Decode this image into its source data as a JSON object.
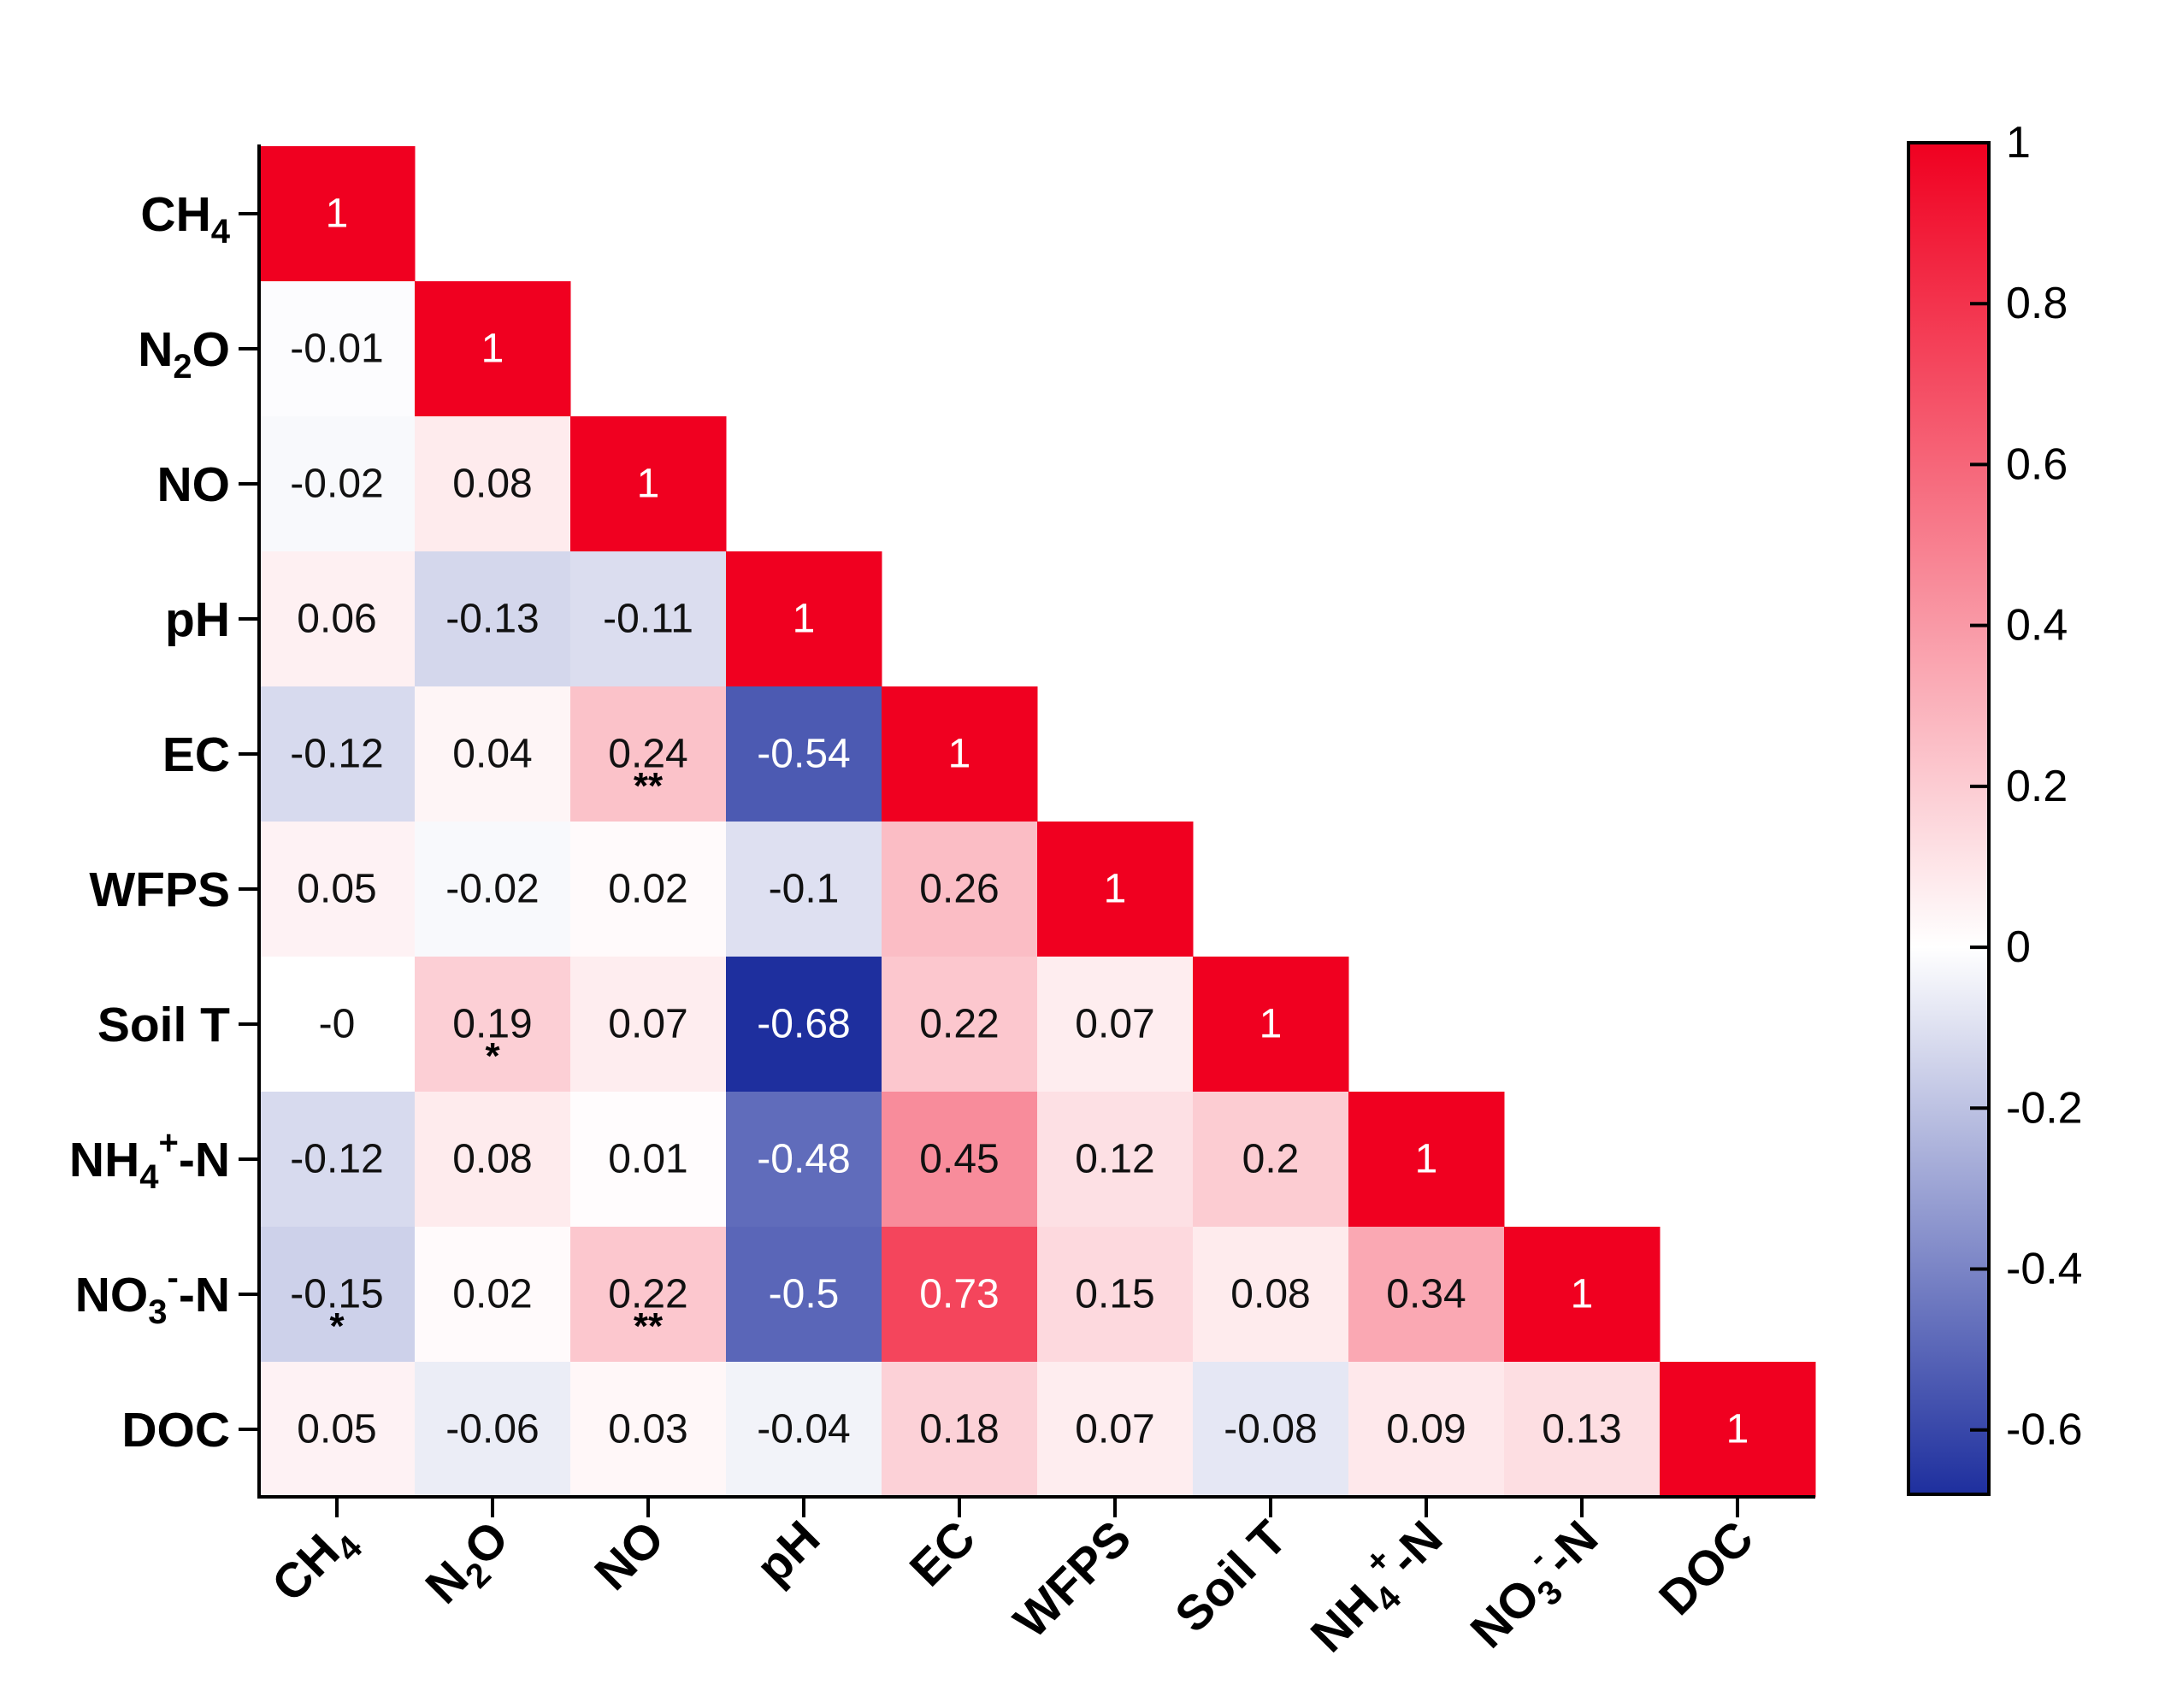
{
  "chart_data": {
    "type": "heatmap",
    "variables": [
      {
        "base": "CH",
        "sub": "4",
        "sup": "",
        "tail": ""
      },
      {
        "base": "N",
        "sub": "2",
        "sup": "",
        "tail": "O"
      },
      {
        "base": "NO",
        "sub": "",
        "sup": "",
        "tail": ""
      },
      {
        "base": "pH",
        "sub": "",
        "sup": "",
        "tail": ""
      },
      {
        "base": "EC",
        "sub": "",
        "sup": "",
        "tail": ""
      },
      {
        "base": "WFPS",
        "sub": "",
        "sup": "",
        "tail": ""
      },
      {
        "base": "Soil T",
        "sub": "",
        "sup": "",
        "tail": ""
      },
      {
        "base": "NH",
        "sub": "4",
        "sup": "+",
        "tail": "-N"
      },
      {
        "base": "NO",
        "sub": "3",
        "sup": "-",
        "tail": "-N"
      },
      {
        "base": "DOC",
        "sub": "",
        "sup": "",
        "tail": ""
      }
    ],
    "matrix": [
      [
        "1"
      ],
      [
        "-0.01",
        "1"
      ],
      [
        "-0.02",
        "0.08",
        "1"
      ],
      [
        "0.06",
        "-0.13",
        "-0.11",
        "1"
      ],
      [
        "-0.12",
        "0.04",
        "0.24",
        "-0.54",
        "1"
      ],
      [
        "0.05",
        "-0.02",
        "0.02",
        "-0.1",
        "0.26",
        "1"
      ],
      [
        "-0",
        "0.19",
        "0.07",
        "-0.68",
        "0.22",
        "0.07",
        "1"
      ],
      [
        "-0.12",
        "0.08",
        "0.01",
        "-0.48",
        "0.45",
        "0.12",
        "0.2",
        "1"
      ],
      [
        "-0.15",
        "0.02",
        "0.22",
        "-0.5",
        "0.73",
        "0.15",
        "0.08",
        "0.34",
        "1"
      ],
      [
        "0.05",
        "-0.06",
        "0.03",
        "-0.04",
        "0.18",
        "0.07",
        "-0.08",
        "0.09",
        "0.13",
        "1"
      ]
    ],
    "significance": [
      {
        "row": 4,
        "col": 2,
        "mark": "**"
      },
      {
        "row": 6,
        "col": 1,
        "mark": "*"
      },
      {
        "row": 8,
        "col": 0,
        "mark": "*"
      },
      {
        "row": 8,
        "col": 2,
        "mark": "**"
      }
    ],
    "colorbar": {
      "range": [
        -0.68,
        1
      ],
      "ticks": [
        1,
        0.8,
        0.6,
        0.4,
        0.2,
        0,
        -0.2,
        -0.4,
        -0.6
      ],
      "tick_labels": [
        "1",
        "0.8",
        "0.6",
        "0.4",
        "0.2",
        "0",
        "-0.2",
        "-0.4",
        "-0.6"
      ],
      "colors": {
        "negative": "#1e2f9e",
        "zero": "#ffffff",
        "positive": "#f00020"
      }
    }
  }
}
